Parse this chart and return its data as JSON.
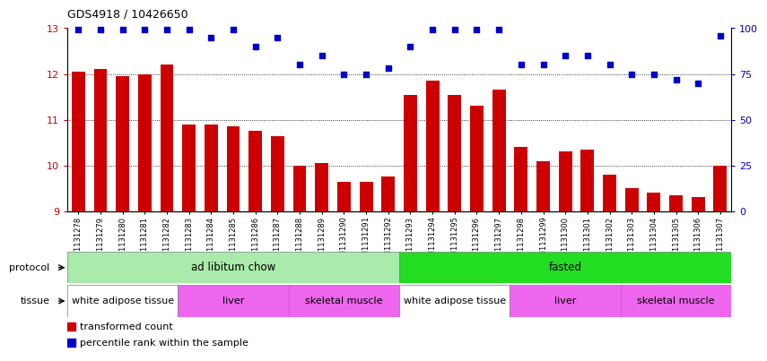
{
  "title": "GDS4918 / 10426650",
  "samples": [
    "GSM1131278",
    "GSM1131279",
    "GSM1131280",
    "GSM1131281",
    "GSM1131282",
    "GSM1131283",
    "GSM1131284",
    "GSM1131285",
    "GSM1131286",
    "GSM1131287",
    "GSM1131288",
    "GSM1131289",
    "GSM1131290",
    "GSM1131291",
    "GSM1131292",
    "GSM1131293",
    "GSM1131294",
    "GSM1131295",
    "GSM1131296",
    "GSM1131297",
    "GSM1131298",
    "GSM1131299",
    "GSM1131300",
    "GSM1131301",
    "GSM1131302",
    "GSM1131303",
    "GSM1131304",
    "GSM1131305",
    "GSM1131306",
    "GSM1131307"
  ],
  "bar_values": [
    12.05,
    12.1,
    11.95,
    12.0,
    12.2,
    10.9,
    10.9,
    10.85,
    10.75,
    10.65,
    10.0,
    10.05,
    9.65,
    9.65,
    9.75,
    11.55,
    11.85,
    11.55,
    11.3,
    11.65,
    10.4,
    10.1,
    10.3,
    10.35,
    9.8,
    9.5,
    9.4,
    9.35,
    9.3,
    10.0
  ],
  "percentile_values": [
    99,
    99,
    99,
    99,
    99,
    99,
    95,
    99,
    90,
    95,
    80,
    85,
    75,
    75,
    78,
    90,
    99,
    99,
    99,
    99,
    80,
    80,
    85,
    85,
    80,
    75,
    75,
    72,
    70,
    96
  ],
  "bar_color": "#cc0000",
  "dot_color": "#0000cc",
  "ylim_left": [
    9,
    13
  ],
  "ylim_right": [
    0,
    100
  ],
  "yticks_left": [
    9,
    10,
    11,
    12,
    13
  ],
  "yticks_right": [
    0,
    25,
    50,
    75,
    100
  ],
  "grid_yticks": [
    10,
    11,
    12
  ],
  "protocol_labels": [
    {
      "text": "ad libitum chow",
      "start": 0,
      "end": 14,
      "color": "#aaeaaa"
    },
    {
      "text": "fasted",
      "start": 15,
      "end": 29,
      "color": "#22dd22"
    }
  ],
  "tissue_labels": [
    {
      "text": "white adipose tissue",
      "start": 0,
      "end": 4,
      "color": "#ffffff"
    },
    {
      "text": "liver",
      "start": 5,
      "end": 9,
      "color": "#ee66ee"
    },
    {
      "text": "skeletal muscle",
      "start": 10,
      "end": 14,
      "color": "#ee66ee"
    },
    {
      "text": "white adipose tissue",
      "start": 15,
      "end": 19,
      "color": "#ffffff"
    },
    {
      "text": "liver",
      "start": 20,
      "end": 24,
      "color": "#ee66ee"
    },
    {
      "text": "skeletal muscle",
      "start": 25,
      "end": 29,
      "color": "#ee66ee"
    }
  ],
  "legend_items": [
    {
      "label": "transformed count",
      "color": "#cc0000"
    },
    {
      "label": "percentile rank within the sample",
      "color": "#0000cc"
    }
  ],
  "bar_width": 0.6,
  "bar_bottom": 9,
  "right_axis_color": "#0000cc",
  "left_axis_color": "#cc0000",
  "bg_color": "#ffffff"
}
